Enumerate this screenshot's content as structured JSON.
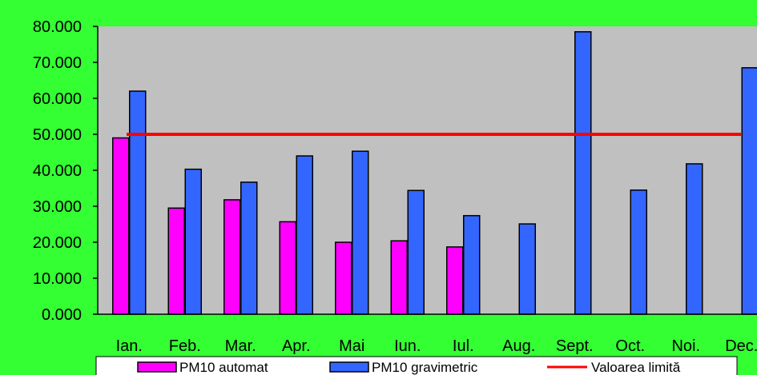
{
  "chart_data": {
    "type": "bar",
    "categories": [
      "Ian.",
      "Feb.",
      "Mar.",
      "Apr.",
      "Mai",
      "Iun.",
      "Iul.",
      "Aug.",
      "Sept.",
      "Oct.",
      "Noi.",
      "Dec."
    ],
    "series": [
      {
        "name": "PM10 automat",
        "type": "bar",
        "color": "#ff00ff",
        "values": [
          49.0,
          29.5,
          31.8,
          25.7,
          20.0,
          20.4,
          18.7,
          null,
          null,
          null,
          null,
          null
        ]
      },
      {
        "name": "PM10 gravimetric",
        "type": "bar",
        "color": "#3366ff",
        "values": [
          62.0,
          40.3,
          36.7,
          44.0,
          45.3,
          34.4,
          27.4,
          25.1,
          78.5,
          34.5,
          41.8,
          68.5
        ]
      },
      {
        "name": "Valoarea limită",
        "type": "line",
        "color": "#ff0000",
        "values": [
          50,
          50,
          50,
          50,
          50,
          50,
          50,
          50,
          50,
          50,
          50,
          50
        ]
      }
    ],
    "yticks": [
      "0.000",
      "10.000",
      "20.000",
      "30.000",
      "40.000",
      "50.000",
      "60.000",
      "70.000",
      "80.000"
    ],
    "ylim": [
      0,
      80
    ],
    "grid": false,
    "legend_position": "bottom"
  },
  "colors": {
    "background": "#33ff33",
    "plot_area": "#c0c0c0"
  }
}
